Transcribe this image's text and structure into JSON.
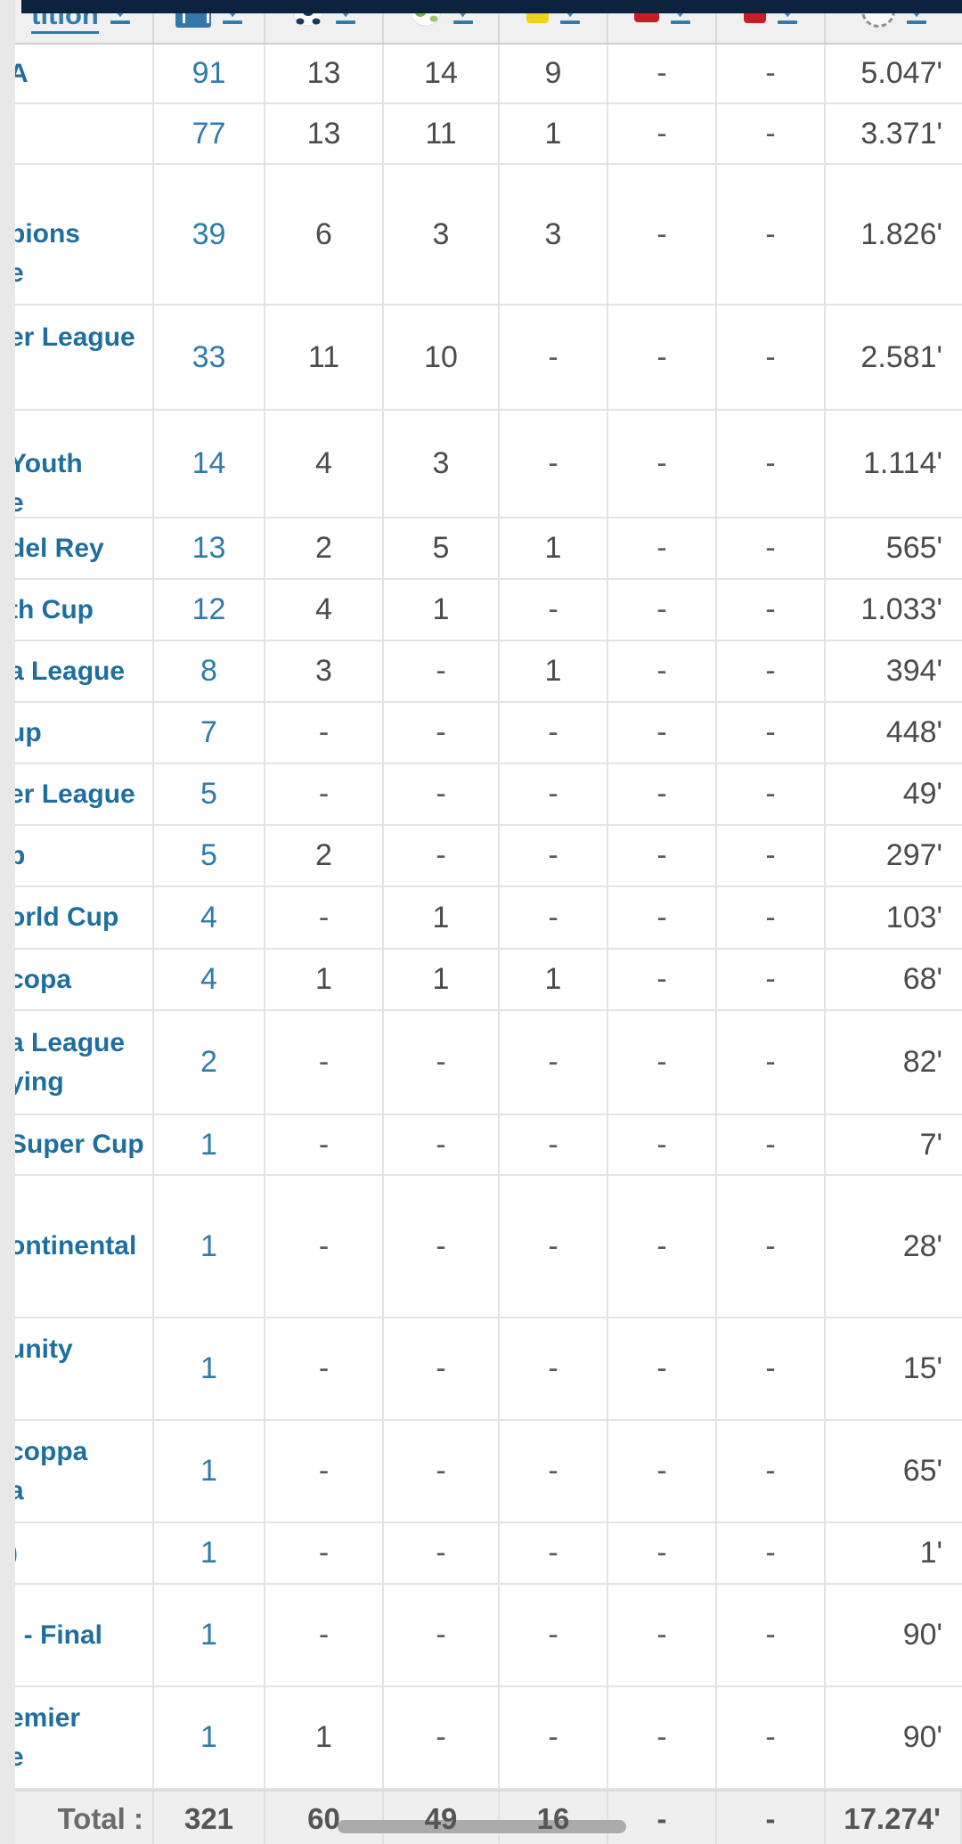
{
  "colors": {
    "navy_bar": "#0c2340",
    "link_blue": "#2e7cab",
    "competition_blue": "#1e6f9f",
    "text_gray": "#4b4b4b",
    "header_bg": "#f0f0f0",
    "total_bg": "#efefef",
    "yellow_card": "#f2d117",
    "red_card": "#c81d25",
    "goal_ball": "#16395c",
    "assist_green": "#76b53e",
    "appearances_icon_blue": "#3377a8"
  },
  "table": {
    "header": {
      "competition_label": "tition",
      "columns": [
        {
          "key": "competition",
          "icon": null
        },
        {
          "key": "appearances",
          "icon": "stadium-icon"
        },
        {
          "key": "goals",
          "icon": "soccer-ball-icon"
        },
        {
          "key": "assists",
          "icon": "green-ball-icon"
        },
        {
          "key": "yellow_cards",
          "icon": "yellow-card-icon"
        },
        {
          "key": "second_yellow_cards",
          "icon": "yellow-red-card-icon"
        },
        {
          "key": "red_cards",
          "icon": "red-card-icon"
        },
        {
          "key": "minutes",
          "icon": "clock-icon"
        }
      ]
    },
    "rows": [
      {
        "lines": [
          "A"
        ],
        "appearances": "91",
        "goals": "13",
        "assists": "14",
        "yellow_cards": "9",
        "second_yellow_cards": "-",
        "red_cards": "-",
        "minutes": "5.047'"
      },
      {
        "lines": [],
        "appearances": "77",
        "goals": "13",
        "assists": "11",
        "yellow_cards": "1",
        "second_yellow_cards": "-",
        "red_cards": "-",
        "minutes": "3.371'"
      },
      {
        "lines": [
          "",
          "pions",
          "e"
        ],
        "appearances": "39",
        "goals": "6",
        "assists": "3",
        "yellow_cards": "3",
        "second_yellow_cards": "-",
        "red_cards": "-",
        "minutes": "1.826'"
      },
      {
        "lines": [
          "er League",
          ""
        ],
        "appearances": "33",
        "goals": "11",
        "assists": "10",
        "yellow_cards": "-",
        "second_yellow_cards": "-",
        "red_cards": "-",
        "minutes": "2.581'"
      },
      {
        "lines": [
          "",
          "Youth",
          "e"
        ],
        "appearances": "14",
        "goals": "4",
        "assists": "3",
        "yellow_cards": "-",
        "second_yellow_cards": "-",
        "red_cards": "-",
        "minutes": "1.114'"
      },
      {
        "lines": [
          "del Rey"
        ],
        "appearances": "13",
        "goals": "2",
        "assists": "5",
        "yellow_cards": "1",
        "second_yellow_cards": "-",
        "red_cards": "-",
        "minutes": "565'"
      },
      {
        "lines": [
          "th Cup"
        ],
        "appearances": "12",
        "goals": "4",
        "assists": "1",
        "yellow_cards": "-",
        "second_yellow_cards": "-",
        "red_cards": "-",
        "minutes": "1.033'"
      },
      {
        "lines": [
          "a League"
        ],
        "appearances": "8",
        "goals": "3",
        "assists": "-",
        "yellow_cards": "1",
        "second_yellow_cards": "-",
        "red_cards": "-",
        "minutes": "394'"
      },
      {
        "lines": [
          "up"
        ],
        "appearances": "7",
        "goals": "-",
        "assists": "-",
        "yellow_cards": "-",
        "second_yellow_cards": "-",
        "red_cards": "-",
        "minutes": "448'"
      },
      {
        "lines": [
          "er League"
        ],
        "appearances": "5",
        "goals": "-",
        "assists": "-",
        "yellow_cards": "-",
        "second_yellow_cards": "-",
        "red_cards": "-",
        "minutes": "49'"
      },
      {
        "lines": [
          "p"
        ],
        "appearances": "5",
        "goals": "2",
        "assists": "-",
        "yellow_cards": "-",
        "second_yellow_cards": "-",
        "red_cards": "-",
        "minutes": "297'"
      },
      {
        "lines": [
          "orld Cup"
        ],
        "appearances": "4",
        "goals": "-",
        "assists": "1",
        "yellow_cards": "-",
        "second_yellow_cards": "-",
        "red_cards": "-",
        "minutes": "103'"
      },
      {
        "lines": [
          "copa"
        ],
        "appearances": "4",
        "goals": "1",
        "assists": "1",
        "yellow_cards": "1",
        "second_yellow_cards": "-",
        "red_cards": "-",
        "minutes": "68'"
      },
      {
        "lines": [
          "a League",
          "ying"
        ],
        "appearances": "2",
        "goals": "-",
        "assists": "-",
        "yellow_cards": "-",
        "second_yellow_cards": "-",
        "red_cards": "-",
        "minutes": "82'"
      },
      {
        "lines": [
          "Super Cup"
        ],
        "appearances": "1",
        "goals": "-",
        "assists": "-",
        "yellow_cards": "-",
        "second_yellow_cards": "-",
        "red_cards": "-",
        "minutes": "7'"
      },
      {
        "lines": [
          "ontinental"
        ],
        "appearances": "1",
        "goals": "-",
        "assists": "-",
        "yellow_cards": "-",
        "second_yellow_cards": "-",
        "red_cards": "-",
        "minutes": "28'"
      },
      {
        "lines": [
          "unity",
          ""
        ],
        "appearances": "1",
        "goals": "-",
        "assists": "-",
        "yellow_cards": "-",
        "second_yellow_cards": "-",
        "red_cards": "-",
        "minutes": "15'"
      },
      {
        "lines": [
          "coppa",
          "a"
        ],
        "appearances": "1",
        "goals": "-",
        "assists": "-",
        "yellow_cards": "-",
        "second_yellow_cards": "-",
        "red_cards": "-",
        "minutes": "65'"
      },
      {
        "lines": [
          ")"
        ],
        "appearances": "1",
        "goals": "-",
        "assists": "-",
        "yellow_cards": "-",
        "second_yellow_cards": "-",
        "red_cards": "-",
        "minutes": "1'"
      },
      {
        "lines": [
          ". - Final"
        ],
        "appearances": "1",
        "goals": "-",
        "assists": "-",
        "yellow_cards": "-",
        "second_yellow_cards": "-",
        "red_cards": "-",
        "minutes": "90'"
      },
      {
        "lines": [
          "emier",
          "e"
        ],
        "appearances": "1",
        "goals": "1",
        "assists": "-",
        "yellow_cards": "-",
        "second_yellow_cards": "-",
        "red_cards": "-",
        "minutes": "90'"
      }
    ],
    "total": {
      "label": "Total :",
      "appearances": "321",
      "goals": "60",
      "assists": "49",
      "yellow_cards": "16",
      "second_yellow_cards": "-",
      "red_cards": "-",
      "minutes": "17.274'"
    }
  }
}
